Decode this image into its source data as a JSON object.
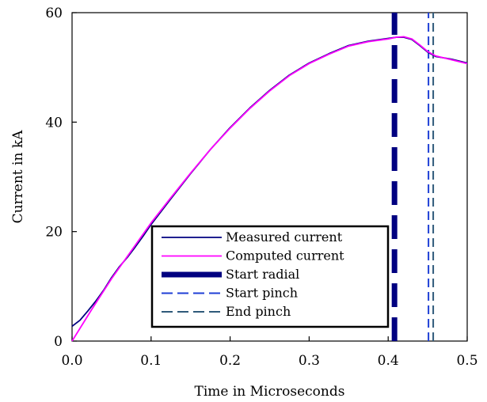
{
  "chart_data": {
    "type": "line",
    "title": "",
    "xlabel": "Time in Microseconds",
    "ylabel": "Current in kA",
    "xlim": [
      0.0,
      0.5
    ],
    "ylim": [
      0,
      60
    ],
    "x_ticks": [
      "0.0",
      "0.1",
      "0.2",
      "0.3",
      "0.4",
      "0.5"
    ],
    "x_tick_values": [
      0.0,
      0.1,
      0.2,
      0.3,
      0.4,
      0.5
    ],
    "y_ticks": [
      "0",
      "20",
      "40",
      "60"
    ],
    "y_tick_values": [
      0,
      20,
      40,
      60
    ],
    "grid": false,
    "legend_position": "bottom-center",
    "series": [
      {
        "name": "Measured current",
        "color": "#000080",
        "style": "solid",
        "x": [
          0.0,
          0.01,
          0.02,
          0.03,
          0.04,
          0.05,
          0.06,
          0.07,
          0.08,
          0.09,
          0.1,
          0.125,
          0.15,
          0.175,
          0.2,
          0.225,
          0.25,
          0.275,
          0.3,
          0.325,
          0.35,
          0.375,
          0.4,
          0.41,
          0.42,
          0.43,
          0.44,
          0.45,
          0.46,
          0.48,
          0.5
        ],
        "y": [
          2.7,
          3.8,
          5.5,
          7.3,
          9.3,
          11.6,
          13.6,
          15.3,
          17.2,
          19.2,
          21.3,
          26.0,
          30.6,
          35.0,
          39.0,
          42.6,
          45.8,
          48.6,
          50.8,
          52.5,
          54.0,
          54.8,
          55.3,
          55.5,
          55.5,
          55.1,
          54.0,
          52.8,
          52.0,
          51.5,
          50.8
        ]
      },
      {
        "name": "Computed current",
        "color": "#ff00ff",
        "style": "solid",
        "x": [
          0.0,
          0.025,
          0.05,
          0.075,
          0.1,
          0.125,
          0.15,
          0.175,
          0.2,
          0.225,
          0.25,
          0.275,
          0.3,
          0.325,
          0.35,
          0.375,
          0.4,
          0.41,
          0.42,
          0.43,
          0.44,
          0.45,
          0.46,
          0.48,
          0.5
        ],
        "y": [
          0.0,
          5.8,
          11.4,
          16.5,
          21.6,
          26.2,
          30.7,
          35.0,
          38.9,
          42.5,
          45.7,
          48.5,
          50.7,
          52.4,
          53.9,
          54.7,
          55.2,
          55.5,
          55.6,
          55.2,
          54.1,
          52.9,
          52.1,
          51.4,
          50.7
        ]
      },
      {
        "name": "Start radial",
        "color": "#000080",
        "style": "thick-dash",
        "x": [
          0.408,
          0.408
        ],
        "y": [
          0,
          60
        ]
      },
      {
        "name": "Start pinch",
        "color": "#1f3fd6",
        "style": "dash",
        "x": [
          0.451,
          0.451
        ],
        "y": [
          0,
          60
        ]
      },
      {
        "name": "End pinch",
        "color": "#2f5a7a",
        "style": "dash",
        "x": [
          0.457,
          0.457
        ],
        "y": [
          0,
          60
        ]
      }
    ]
  }
}
